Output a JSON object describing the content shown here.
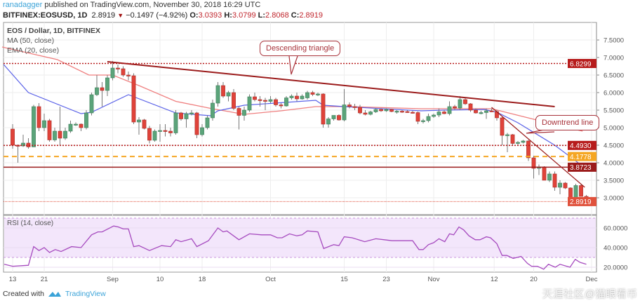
{
  "header": {
    "author": "ranadagger",
    "published": "published on TradingView.com, November 30, 2018 16:29 UTC",
    "symbol": "BITFINEX:EOSUSD, 1D",
    "last": "2.8919",
    "change": "−0.1497 (−4.92%)",
    "o_label": "O:",
    "o": "3.0393",
    "h_label": "H:",
    "h": "3.0799",
    "l_label": "L:",
    "l": "2.8068",
    "c_label": "C:",
    "c": "2.8919"
  },
  "legend": {
    "title": "EOS / Dollar, 1D, BITFINEX",
    "ma": "MA (50, close)",
    "ema": "EMA (20, close)",
    "rsi": "RSI (14, close)"
  },
  "annotations": {
    "triangle": "Descending triangle",
    "downtrend": "Downtrend line"
  },
  "colors": {
    "up": "#5ba47a",
    "down": "#e0433a",
    "ma": "#ef7f7f",
    "ema": "#5a62e8",
    "trend": "#9b1b1b",
    "orange": "#f5a623",
    "rsi": "#a64bbf",
    "rsiband": "#f3e6fb"
  },
  "chart_data": {
    "type": "candlestick",
    "price_axis": {
      "min": 2.75,
      "max": 7.75,
      "ticks": [
        "7.5000",
        "7.0000",
        "6.5000",
        "6.0000",
        "5.5000",
        "5.0000",
        "4.5000",
        "4.0000",
        "3.5000",
        "3.0000"
      ]
    },
    "levels": [
      {
        "value": 6.8299,
        "label": "6.8299",
        "style": "dotted",
        "color": "#b71c1c"
      },
      {
        "value": 4.493,
        "label": "4.4930",
        "style": "dotted",
        "color": "#b71c1c"
      },
      {
        "value": 4.1778,
        "label": "4.1778",
        "style": "dashed",
        "color": "#f5a623"
      },
      {
        "value": 3.8723,
        "label": "3.8723",
        "style": "solid",
        "color": "#9b1b1b"
      },
      {
        "value": 2.8919,
        "label": "2.8919",
        "style": "dotted-light",
        "color": "#e0513c"
      }
    ],
    "x_labels": [
      {
        "day": 0,
        "label": "13"
      },
      {
        "day": 6,
        "label": "21"
      },
      {
        "day": 19,
        "label": "Sep"
      },
      {
        "day": 28,
        "label": "10"
      },
      {
        "day": 36,
        "label": "18"
      },
      {
        "day": 49,
        "label": "Oct"
      },
      {
        "day": 63,
        "label": "15"
      },
      {
        "day": 71,
        "label": "23"
      },
      {
        "day": 80,
        "label": "Nov"
      },
      {
        "day": 91.5,
        "label": "12"
      },
      {
        "day": 99,
        "label": "20"
      },
      {
        "day": 110,
        "label": "Dec"
      }
    ],
    "candles_ohlc": [
      [
        4.96,
        5.1,
        4.4,
        4.5
      ],
      [
        4.5,
        4.52,
        4.0,
        4.48
      ],
      [
        4.48,
        4.8,
        4.45,
        4.56
      ],
      [
        4.56,
        4.7,
        4.4,
        4.45
      ],
      [
        4.45,
        5.65,
        4.45,
        5.6
      ],
      [
        5.6,
        5.7,
        4.9,
        5.0
      ],
      [
        5.0,
        5.4,
        4.9,
        5.2
      ],
      [
        5.2,
        5.25,
        4.6,
        4.65
      ],
      [
        4.65,
        5.0,
        4.6,
        4.9
      ],
      [
        4.9,
        5.6,
        4.5,
        4.7
      ],
      [
        4.7,
        5.0,
        4.65,
        4.9
      ],
      [
        4.9,
        5.2,
        4.85,
        5.1
      ],
      [
        5.1,
        5.15,
        5.05,
        5.1
      ],
      [
        5.1,
        5.12,
        4.9,
        5.0
      ],
      [
        5.0,
        5.5,
        4.95,
        5.42
      ],
      [
        5.42,
        6.0,
        5.35,
        5.94
      ],
      [
        5.94,
        6.5,
        5.9,
        6.14
      ],
      [
        6.14,
        6.3,
        5.6,
        6.06
      ],
      [
        6.06,
        6.5,
        5.9,
        6.42
      ],
      [
        6.42,
        6.9,
        6.35,
        6.7
      ],
      [
        6.7,
        6.8,
        6.55,
        6.68
      ],
      [
        6.68,
        6.75,
        6.45,
        6.5
      ],
      [
        6.5,
        6.6,
        6.35,
        6.48
      ],
      [
        6.48,
        6.55,
        5.1,
        5.16
      ],
      [
        5.16,
        5.3,
        4.8,
        5.22
      ],
      [
        5.22,
        5.25,
        4.95,
        4.98
      ],
      [
        4.98,
        5.05,
        4.55,
        4.64
      ],
      [
        4.64,
        4.95,
        4.6,
        4.9
      ],
      [
        4.9,
        5.1,
        4.6,
        4.92
      ],
      [
        4.92,
        5.1,
        4.75,
        4.9
      ],
      [
        4.9,
        5.0,
        4.75,
        4.85
      ],
      [
        4.85,
        5.5,
        4.8,
        5.42
      ],
      [
        5.42,
        5.45,
        5.2,
        5.25
      ],
      [
        5.25,
        5.45,
        5.0,
        5.4
      ],
      [
        5.4,
        5.5,
        5.35,
        5.42
      ],
      [
        5.42,
        5.45,
        4.7,
        4.8
      ],
      [
        4.8,
        5.1,
        4.75,
        5.0
      ],
      [
        5.0,
        5.35,
        4.95,
        5.28
      ],
      [
        5.28,
        5.8,
        5.2,
        5.7
      ],
      [
        5.7,
        6.3,
        5.6,
        6.2
      ],
      [
        6.2,
        6.3,
        5.85,
        5.9
      ],
      [
        5.9,
        6.05,
        5.75,
        6.0
      ],
      [
        6.0,
        6.1,
        5.5,
        5.55
      ],
      [
        5.55,
        5.6,
        4.95,
        5.35
      ],
      [
        5.35,
        5.6,
        5.2,
        5.5
      ],
      [
        5.5,
        5.95,
        5.45,
        5.88
      ],
      [
        5.88,
        6.0,
        5.75,
        5.8
      ],
      [
        5.8,
        5.9,
        5.6,
        5.78
      ],
      [
        5.78,
        5.85,
        5.5,
        5.75
      ],
      [
        5.75,
        5.9,
        5.7,
        5.8
      ],
      [
        5.8,
        5.85,
        5.6,
        5.65
      ],
      [
        5.65,
        5.7,
        5.55,
        5.62
      ],
      [
        5.62,
        5.9,
        5.6,
        5.85
      ],
      [
        5.85,
        5.95,
        5.8,
        5.9
      ],
      [
        5.9,
        6.0,
        5.75,
        5.82
      ],
      [
        5.82,
        5.95,
        5.8,
        5.9
      ],
      [
        5.85,
        6.05,
        5.8,
        6.0
      ],
      [
        6.0,
        6.05,
        5.9,
        5.95
      ],
      [
        5.95,
        6.0,
        5.9,
        5.96
      ],
      [
        5.96,
        5.98,
        5.0,
        5.1
      ],
      [
        5.1,
        5.3,
        5.0,
        5.25
      ],
      [
        5.25,
        5.35,
        5.2,
        5.35
      ],
      [
        5.35,
        5.38,
        5.2,
        5.22
      ],
      [
        5.22,
        6.1,
        5.18,
        5.65
      ],
      [
        5.65,
        5.72,
        5.55,
        5.6
      ],
      [
        5.6,
        5.68,
        5.5,
        5.58
      ],
      [
        5.58,
        5.65,
        5.38,
        5.42
      ],
      [
        5.42,
        5.5,
        5.35,
        5.38
      ],
      [
        5.38,
        5.48,
        5.35,
        5.45
      ],
      [
        5.45,
        5.55,
        5.42,
        5.52
      ],
      [
        5.52,
        5.55,
        5.45,
        5.48
      ],
      [
        5.48,
        5.55,
        5.45,
        5.52
      ],
      [
        5.52,
        5.54,
        5.44,
        5.46
      ],
      [
        5.46,
        5.5,
        5.4,
        5.47
      ],
      [
        5.47,
        5.5,
        5.42,
        5.46
      ],
      [
        5.46,
        5.5,
        5.42,
        5.44
      ],
      [
        5.44,
        5.48,
        5.4,
        5.43
      ],
      [
        5.43,
        5.46,
        5.1,
        5.18
      ],
      [
        5.18,
        5.25,
        5.12,
        5.2
      ],
      [
        5.2,
        5.4,
        5.15,
        5.32
      ],
      [
        5.32,
        5.4,
        5.28,
        5.36
      ],
      [
        5.36,
        5.55,
        5.3,
        5.45
      ],
      [
        5.45,
        5.5,
        5.38,
        5.4
      ],
      [
        5.4,
        5.75,
        5.35,
        5.6
      ],
      [
        5.6,
        5.65,
        5.5,
        5.56
      ],
      [
        5.56,
        5.9,
        5.5,
        5.8
      ],
      [
        5.8,
        5.85,
        5.65,
        5.68
      ],
      [
        5.68,
        5.7,
        5.45,
        5.5
      ],
      [
        5.5,
        5.55,
        5.4,
        5.42
      ],
      [
        5.42,
        5.48,
        5.38,
        5.43
      ],
      [
        5.43,
        5.55,
        5.25,
        5.48
      ],
      [
        5.48,
        5.55,
        5.44,
        5.46
      ],
      [
        5.46,
        5.5,
        5.2,
        5.28
      ],
      [
        5.28,
        5.3,
        4.5,
        4.78
      ],
      [
        4.78,
        4.85,
        4.3,
        4.8
      ],
      [
        4.8,
        4.82,
        4.5,
        4.55
      ],
      [
        4.55,
        4.62,
        4.5,
        4.58
      ],
      [
        4.58,
        4.65,
        4.55,
        4.62
      ],
      [
        4.62,
        4.65,
        4.05,
        4.14
      ],
      [
        4.14,
        4.2,
        3.55,
        3.84
      ],
      [
        3.84,
        3.95,
        3.65,
        3.88
      ],
      [
        3.88,
        3.9,
        3.5,
        3.5
      ],
      [
        3.5,
        3.75,
        3.45,
        3.68
      ],
      [
        3.68,
        3.75,
        3.2,
        3.3
      ],
      [
        3.3,
        3.5,
        3.1,
        3.42
      ],
      [
        3.42,
        3.45,
        3.25,
        3.28
      ],
      [
        3.28,
        3.3,
        2.95,
        2.98
      ],
      [
        2.98,
        3.4,
        2.95,
        3.35
      ],
      [
        3.35,
        3.38,
        3.05,
        3.04
      ],
      [
        3.04,
        3.08,
        2.81,
        2.89
      ]
    ],
    "ma50": [
      [
        -2,
        7.3
      ],
      [
        8.5,
        6.94
      ],
      [
        14.5,
        6.5
      ],
      [
        19,
        6.5
      ],
      [
        24,
        6.2
      ],
      [
        31,
        5.75
      ],
      [
        37.6,
        5.55
      ],
      [
        44,
        5.38
      ],
      [
        51,
        5.48
      ],
      [
        57.6,
        5.6
      ],
      [
        64,
        5.6
      ],
      [
        77.6,
        5.54
      ],
      [
        91,
        5.54
      ],
      [
        99,
        5.24
      ],
      [
        108.3,
        4.9
      ]
    ],
    "ema20": [
      [
        -1.7,
        6.8
      ],
      [
        3,
        6.0
      ],
      [
        13,
        5.4
      ],
      [
        15,
        5.44
      ],
      [
        22,
        5.94
      ],
      [
        31,
        5.42
      ],
      [
        37.6,
        5.34
      ],
      [
        39,
        5.48
      ],
      [
        44,
        5.64
      ],
      [
        57.6,
        5.78
      ],
      [
        59,
        5.64
      ],
      [
        63,
        5.6
      ],
      [
        77.6,
        5.48
      ],
      [
        82,
        5.5
      ],
      [
        89.6,
        5.52
      ],
      [
        92,
        5.44
      ],
      [
        96,
        5.14
      ],
      [
        103,
        4.5
      ],
      [
        108.5,
        3.88
      ]
    ],
    "trendlines": [
      {
        "name": "descending-triangle-top",
        "points": [
          [
            18,
            6.88
          ],
          [
            103,
            5.6
          ]
        ]
      },
      {
        "name": "downtrend-line",
        "points": [
          [
            91,
            5.58
          ],
          [
            108.7,
            3.3
          ]
        ]
      }
    ],
    "rsi": {
      "ticks": [
        "60.0000",
        "40.0000",
        "20.0000"
      ],
      "band": [
        30,
        70
      ],
      "values": [
        [
          -1.6,
          23
        ],
        [
          0,
          21
        ],
        [
          3,
          22
        ],
        [
          4,
          41
        ],
        [
          5,
          37
        ],
        [
          6,
          40
        ],
        [
          7,
          35
        ],
        [
          8.1,
          38
        ],
        [
          9.2,
          36
        ],
        [
          11.2,
          41
        ],
        [
          13,
          40
        ],
        [
          15,
          53
        ],
        [
          16.2,
          56
        ],
        [
          17,
          56
        ],
        [
          19.2,
          62
        ],
        [
          20.1,
          61
        ],
        [
          21,
          59
        ],
        [
          22,
          59
        ],
        [
          23,
          41
        ],
        [
          24,
          42
        ],
        [
          26,
          37
        ],
        [
          28.3,
          42
        ],
        [
          30,
          41
        ],
        [
          31,
          48
        ],
        [
          32,
          46
        ],
        [
          34,
          49
        ],
        [
          35,
          41
        ],
        [
          37.2,
          47
        ],
        [
          39,
          60
        ],
        [
          40,
          56
        ],
        [
          40.7,
          57
        ],
        [
          43,
          48
        ],
        [
          45,
          54
        ],
        [
          47.3,
          53
        ],
        [
          49,
          53
        ],
        [
          50.3,
          50
        ],
        [
          51.2,
          50
        ],
        [
          52.6,
          54
        ],
        [
          54,
          52
        ],
        [
          55,
          53
        ],
        [
          56,
          57
        ],
        [
          58,
          56
        ],
        [
          59.1,
          39
        ],
        [
          61,
          43
        ],
        [
          62,
          42
        ],
        [
          63,
          51
        ],
        [
          64.5,
          50
        ],
        [
          66.9,
          46
        ],
        [
          69,
          49
        ],
        [
          70.6,
          48
        ],
        [
          72.1,
          47
        ],
        [
          74,
          47
        ],
        [
          76,
          47
        ],
        [
          77.2,
          38
        ],
        [
          78,
          38
        ],
        [
          79,
          43
        ],
        [
          80,
          45
        ],
        [
          81,
          49
        ],
        [
          82.1,
          46
        ],
        [
          83,
          54
        ],
        [
          83.8,
          53
        ],
        [
          84.8,
          61
        ],
        [
          85.7,
          58
        ],
        [
          86.7,
          52
        ],
        [
          87.9,
          48
        ],
        [
          88.8,
          48
        ],
        [
          90,
          51
        ],
        [
          90.8,
          50
        ],
        [
          92,
          44
        ],
        [
          93,
          32
        ],
        [
          93.9,
          32
        ],
        [
          95.1,
          29
        ],
        [
          96.6,
          31
        ],
        [
          97.8,
          24
        ],
        [
          98.6,
          21
        ],
        [
          99.7,
          21
        ],
        [
          100.9,
          18
        ],
        [
          101.8,
          23
        ],
        [
          103.1,
          20
        ],
        [
          104,
          23
        ],
        [
          105.9,
          20
        ],
        [
          106.9,
          28
        ],
        [
          107.8,
          25
        ],
        [
          109,
          23
        ]
      ]
    }
  },
  "footer": {
    "created": "Created with",
    "brand": "TradingView",
    "watermark": "天涯社区@猫眼看币"
  }
}
